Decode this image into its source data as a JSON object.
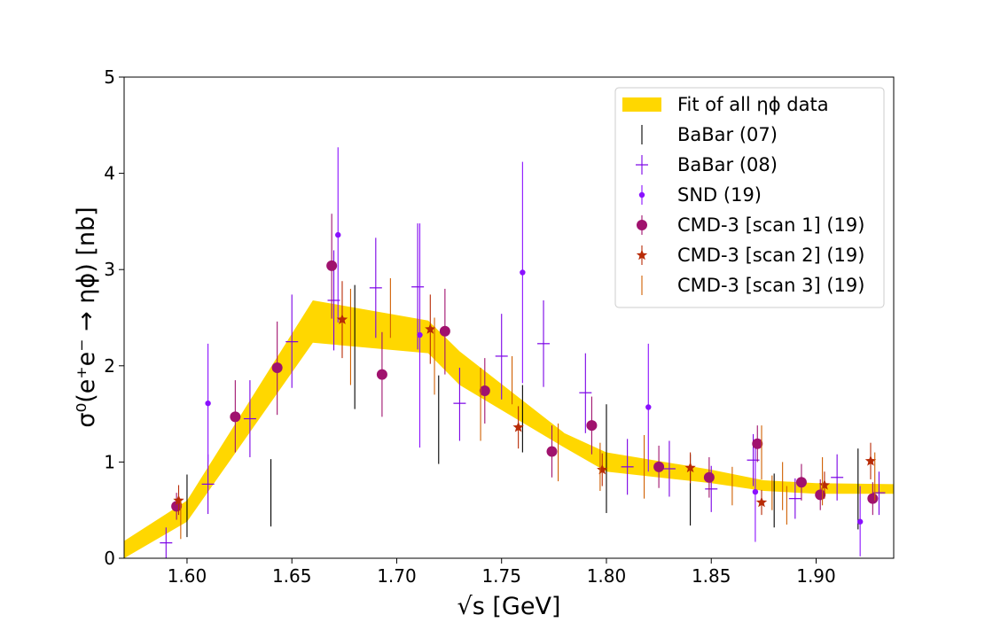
{
  "chart_data": {
    "type": "scatter",
    "xlabel": "√s [GeV]",
    "ylabel": "σ⁰(e⁺e⁻ → ηϕ) [nb]",
    "xlim": [
      1.57,
      1.937
    ],
    "ylim": [
      0,
      5
    ],
    "xticks": [
      1.6,
      1.65,
      1.7,
      1.75,
      1.8,
      1.85,
      1.9
    ],
    "xtick_labels": [
      "1.60",
      "1.65",
      "1.70",
      "1.75",
      "1.80",
      "1.85",
      "1.90"
    ],
    "yticks": [
      0,
      1,
      2,
      3,
      4,
      5
    ],
    "ytick_labels": [
      "0",
      "1",
      "2",
      "3",
      "4",
      "5"
    ],
    "legend_position": "top-right",
    "colors": {
      "fit": "#ffd700",
      "babar07": "#000000",
      "babar08": "#7a00e6",
      "snd": "#8a10ff",
      "cmd3_scan1": "#a0126e",
      "cmd3_scan2": "#b82b06",
      "cmd3_scan3": "#d05f00"
    },
    "fit_band": {
      "name": "Fit of all ηϕ data",
      "x": [
        1.57,
        1.6,
        1.66,
        1.715,
        1.73,
        1.78,
        1.8,
        1.85,
        1.875,
        1.9,
        1.937
      ],
      "lower": [
        0.0,
        0.38,
        2.24,
        2.13,
        1.8,
        1.15,
        0.9,
        0.78,
        0.7,
        0.67,
        0.67
      ],
      "upper": [
        0.18,
        0.6,
        2.68,
        2.47,
        2.15,
        1.3,
        1.1,
        0.92,
        0.81,
        0.78,
        0.77
      ]
    },
    "series": [
      {
        "name": "BaBar (07)",
        "marker": "errorbar",
        "points": [
          {
            "x": 1.6,
            "y": 0.55,
            "ylo": 0.22,
            "yhi": 0.87
          },
          {
            "x": 1.64,
            "y": 0.68,
            "ylo": 0.33,
            "yhi": 1.03
          },
          {
            "x": 1.68,
            "y": 2.2,
            "ylo": 1.55,
            "yhi": 2.84
          },
          {
            "x": 1.72,
            "y": 1.45,
            "ylo": 0.98,
            "yhi": 1.9
          },
          {
            "x": 1.76,
            "y": 1.45,
            "ylo": 1.1,
            "yhi": 1.8
          },
          {
            "x": 1.8,
            "y": 1.05,
            "ylo": 0.47,
            "yhi": 1.6
          },
          {
            "x": 1.84,
            "y": 0.72,
            "ylo": 0.34,
            "yhi": 1.08
          },
          {
            "x": 1.88,
            "y": 0.6,
            "ylo": 0.32,
            "yhi": 0.88
          },
          {
            "x": 1.92,
            "y": 0.72,
            "ylo": 0.3,
            "yhi": 1.14
          }
        ]
      },
      {
        "name": "BaBar (08)",
        "marker": "plus",
        "points": [
          {
            "x": 1.59,
            "y": 0.16,
            "ylo": 0.0,
            "yhi": 0.32
          },
          {
            "x": 1.61,
            "y": 0.77,
            "ylo": 0.46,
            "yhi": 1.08
          },
          {
            "x": 1.63,
            "y": 1.45,
            "ylo": 1.05,
            "yhi": 1.85
          },
          {
            "x": 1.65,
            "y": 2.25,
            "ylo": 1.77,
            "yhi": 2.74
          },
          {
            "x": 1.67,
            "y": 2.68,
            "ylo": 2.16,
            "yhi": 3.2
          },
          {
            "x": 1.69,
            "y": 2.81,
            "ylo": 2.29,
            "yhi": 3.33
          },
          {
            "x": 1.71,
            "y": 2.82,
            "ylo": 2.17,
            "yhi": 3.48
          },
          {
            "x": 1.73,
            "y": 1.61,
            "ylo": 1.22,
            "yhi": 1.98
          },
          {
            "x": 1.75,
            "y": 2.1,
            "ylo": 1.65,
            "yhi": 2.54
          },
          {
            "x": 1.77,
            "y": 2.23,
            "ylo": 1.78,
            "yhi": 2.68
          },
          {
            "x": 1.79,
            "y": 1.72,
            "ylo": 1.3,
            "yhi": 2.13
          },
          {
            "x": 1.81,
            "y": 0.95,
            "ylo": 0.66,
            "yhi": 1.24
          },
          {
            "x": 1.83,
            "y": 0.93,
            "ylo": 0.64,
            "yhi": 1.22
          },
          {
            "x": 1.85,
            "y": 0.72,
            "ylo": 0.48,
            "yhi": 0.96
          },
          {
            "x": 1.87,
            "y": 1.02,
            "ylo": 0.75,
            "yhi": 1.29
          },
          {
            "x": 1.89,
            "y": 0.62,
            "ylo": 0.41,
            "yhi": 0.83
          },
          {
            "x": 1.91,
            "y": 0.84,
            "ylo": 0.6,
            "yhi": 1.08
          },
          {
            "x": 1.93,
            "y": 0.68,
            "ylo": 0.45,
            "yhi": 0.9
          }
        ]
      },
      {
        "name": "SND (19)",
        "marker": "dot",
        "points": [
          {
            "x": 1.61,
            "y": 1.61,
            "ylo": 1.0,
            "yhi": 2.23
          },
          {
            "x": 1.672,
            "y": 3.36,
            "ylo": 2.45,
            "yhi": 4.27
          },
          {
            "x": 1.711,
            "y": 2.32,
            "ylo": 1.15,
            "yhi": 3.48
          },
          {
            "x": 1.76,
            "y": 2.97,
            "ylo": 1.82,
            "yhi": 4.12
          },
          {
            "x": 1.82,
            "y": 1.57,
            "ylo": 0.9,
            "yhi": 2.23
          },
          {
            "x": 1.871,
            "y": 0.69,
            "ylo": 0.17,
            "yhi": 1.2
          },
          {
            "x": 1.921,
            "y": 0.38,
            "ylo": 0.02,
            "yhi": 0.75
          }
        ]
      },
      {
        "name": "CMD-3 [scan 1] (19)",
        "marker": "circle",
        "points": [
          {
            "x": 1.595,
            "y": 0.54,
            "ylo": 0.4,
            "yhi": 0.68
          },
          {
            "x": 1.623,
            "y": 1.47,
            "ylo": 1.1,
            "yhi": 1.85
          },
          {
            "x": 1.643,
            "y": 1.98,
            "ylo": 1.49,
            "yhi": 2.46
          },
          {
            "x": 1.669,
            "y": 3.04,
            "ylo": 2.49,
            "yhi": 3.58
          },
          {
            "x": 1.693,
            "y": 1.91,
            "ylo": 1.47,
            "yhi": 2.35
          },
          {
            "x": 1.723,
            "y": 2.36,
            "ylo": 1.91,
            "yhi": 2.8
          },
          {
            "x": 1.742,
            "y": 1.74,
            "ylo": 1.4,
            "yhi": 2.08
          },
          {
            "x": 1.774,
            "y": 1.11,
            "ylo": 0.84,
            "yhi": 1.38
          },
          {
            "x": 1.793,
            "y": 1.38,
            "ylo": 1.08,
            "yhi": 1.68
          },
          {
            "x": 1.825,
            "y": 0.95,
            "ylo": 0.73,
            "yhi": 1.17
          },
          {
            "x": 1.849,
            "y": 0.84,
            "ylo": 0.63,
            "yhi": 1.05
          },
          {
            "x": 1.872,
            "y": 1.19,
            "ylo": 1.0,
            "yhi": 1.38
          },
          {
            "x": 1.893,
            "y": 0.79,
            "ylo": 0.6,
            "yhi": 0.98
          },
          {
            "x": 1.902,
            "y": 0.66,
            "ylo": 0.5,
            "yhi": 0.82
          },
          {
            "x": 1.927,
            "y": 0.62,
            "ylo": 0.45,
            "yhi": 0.79
          }
        ]
      },
      {
        "name": "CMD-3 [scan 2] (19)",
        "marker": "star",
        "points": [
          {
            "x": 1.596,
            "y": 0.6,
            "ylo": 0.45,
            "yhi": 0.76
          },
          {
            "x": 1.674,
            "y": 2.48,
            "ylo": 2.08,
            "yhi": 2.88
          },
          {
            "x": 1.716,
            "y": 2.38,
            "ylo": 2.02,
            "yhi": 2.74
          },
          {
            "x": 1.758,
            "y": 1.36,
            "ylo": 1.14,
            "yhi": 1.58
          },
          {
            "x": 1.798,
            "y": 0.92,
            "ylo": 0.75,
            "yhi": 1.09
          },
          {
            "x": 1.84,
            "y": 0.94,
            "ylo": 0.78,
            "yhi": 1.1
          },
          {
            "x": 1.874,
            "y": 0.58,
            "ylo": 0.45,
            "yhi": 0.71
          },
          {
            "x": 1.904,
            "y": 0.76,
            "ylo": 0.62,
            "yhi": 0.9
          },
          {
            "x": 1.926,
            "y": 1.01,
            "ylo": 0.82,
            "yhi": 1.2
          }
        ]
      },
      {
        "name": "CMD-3 [scan 3] (19)",
        "marker": "errorbar",
        "points": [
          {
            "x": 1.597,
            "y": 0.4,
            "ylo": 0.2,
            "yhi": 0.6
          },
          {
            "x": 1.678,
            "y": 2.3,
            "ylo": 1.8,
            "yhi": 2.8
          },
          {
            "x": 1.697,
            "y": 2.6,
            "ylo": 2.29,
            "yhi": 2.91
          },
          {
            "x": 1.718,
            "y": 2.1,
            "ylo": 1.7,
            "yhi": 2.5
          },
          {
            "x": 1.74,
            "y": 1.6,
            "ylo": 1.22,
            "yhi": 1.98
          },
          {
            "x": 1.755,
            "y": 1.85,
            "ylo": 1.6,
            "yhi": 2.1
          },
          {
            "x": 1.777,
            "y": 1.1,
            "ylo": 0.8,
            "yhi": 1.4
          },
          {
            "x": 1.797,
            "y": 0.95,
            "ylo": 0.7,
            "yhi": 1.2
          },
          {
            "x": 1.818,
            "y": 0.95,
            "ylo": 0.62,
            "yhi": 1.28
          },
          {
            "x": 1.86,
            "y": 0.75,
            "ylo": 0.55,
            "yhi": 0.95
          },
          {
            "x": 1.874,
            "y": 1.1,
            "ylo": 0.82,
            "yhi": 1.38
          },
          {
            "x": 1.879,
            "y": 0.68,
            "ylo": 0.5,
            "yhi": 0.86
          },
          {
            "x": 1.884,
            "y": 0.75,
            "ylo": 0.5,
            "yhi": 1.0
          },
          {
            "x": 1.886,
            "y": 0.55,
            "ylo": 0.35,
            "yhi": 0.75
          },
          {
            "x": 1.903,
            "y": 0.8,
            "ylo": 0.55,
            "yhi": 1.05
          },
          {
            "x": 1.928,
            "y": 0.85,
            "ylo": 0.6,
            "yhi": 1.1
          }
        ]
      }
    ]
  }
}
